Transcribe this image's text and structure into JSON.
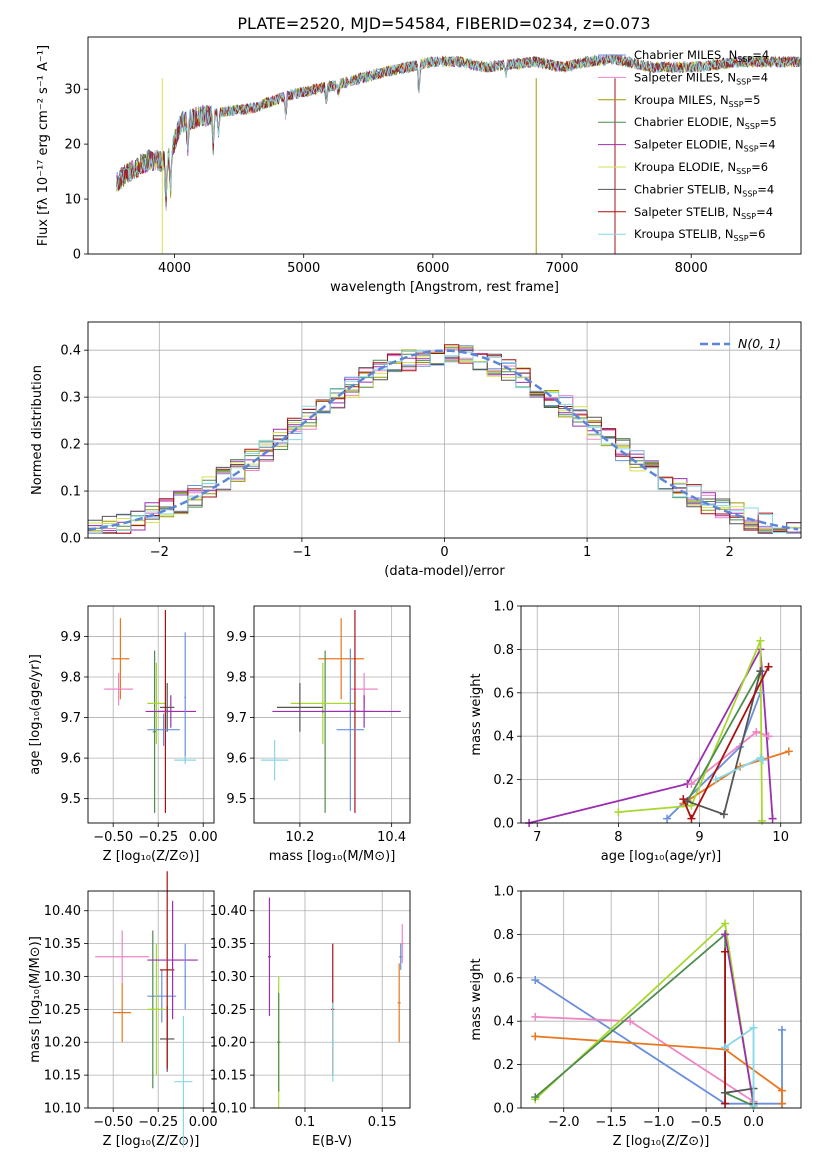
{
  "figure": {
    "title": "PLATE=2520, MJD=54584, FIBERID=0234, z=0.073"
  },
  "colors": {
    "Chabrier MILES": "#6a8fdc",
    "Salpeter MILES": "#ee86c4",
    "Kroupa MILES": "#9a9a00",
    "Chabrier ELODIE": "#4e8d4e",
    "Salpeter ELODIE": "#9a2fb0",
    "Kroupa ELODIE": "#d6e050",
    "Chabrier STELIB": "#555555",
    "Salpeter STELIB": "#aa1010",
    "Kroupa STELIB": "#88d8e8",
    "orange": "#e87820",
    "lime": "#a8d830",
    "normal": "#5b86d8"
  },
  "chart_data": [
    {
      "type": "line",
      "name": "spectrum",
      "title": "PLATE=2520, MJD=54584, FIBERID=0234, z=0.073",
      "xlabel": "wavelength [Angstrom, rest frame]",
      "ylabel": "Flux [fλ 10⁻¹⁷ erg cm⁻² s⁻¹ A⁻¹]",
      "xlim": [
        3330,
        8850
      ],
      "ylim": [
        0,
        39.5
      ],
      "xticks": [
        4000,
        5000,
        6000,
        7000,
        8000
      ],
      "yticks": [
        0,
        10,
        20,
        30
      ],
      "legend_position": "top-right",
      "legend": [
        "Chabrier MILES, N_SSP=4",
        "Salpeter MILES, N_SSP=4",
        "Kroupa MILES, N_SSP=5",
        "Chabrier ELODIE, N_SSP=5",
        "Salpeter ELODIE, N_SSP=4",
        "Kroupa ELODIE, N_SSP=6",
        "Chabrier STELIB, N_SSP=4",
        "Salpeter STELIB, N_SSP=4",
        "Kroupa STELIB, N_SSP=6"
      ],
      "continuum": [
        [
          3550,
          13
        ],
        [
          3650,
          15
        ],
        [
          3800,
          17
        ],
        [
          3950,
          17
        ],
        [
          4050,
          24
        ],
        [
          4200,
          25
        ],
        [
          4400,
          26
        ],
        [
          4600,
          26.5
        ],
        [
          4900,
          29
        ],
        [
          5100,
          30
        ],
        [
          5300,
          31
        ],
        [
          5600,
          33
        ],
        [
          5800,
          34
        ],
        [
          6000,
          35
        ],
        [
          6200,
          35
        ],
        [
          6400,
          34
        ],
        [
          6800,
          35
        ],
        [
          7000,
          34
        ],
        [
          7200,
          35
        ],
        [
          7400,
          35.5
        ],
        [
          7700,
          34
        ],
        [
          8000,
          34
        ],
        [
          8400,
          35
        ],
        [
          8850,
          35
        ]
      ]
    },
    {
      "type": "line",
      "name": "residuals",
      "xlabel": "(data-model)/error",
      "ylabel": "Normed distribution",
      "xlim": [
        -2.5,
        2.5
      ],
      "ylim": [
        0,
        0.46
      ],
      "xticks": [
        -2,
        -1,
        0,
        1,
        2
      ],
      "yticks": [
        0.0,
        0.1,
        0.2,
        0.3,
        0.4
      ],
      "grid": true,
      "legend_position": "top-right",
      "legend": [
        "N(0, 1)"
      ]
    },
    {
      "type": "scatter",
      "name": "age-vs-Z",
      "xlabel": "Z [log₁₀(Z/Z⊙)]",
      "ylabel": "age  [log₁₀(age/yr)]",
      "xlim": [
        -0.64,
        0.06
      ],
      "ylim": [
        9.44,
        9.975
      ],
      "xticks": [
        -0.5,
        -0.25,
        0.0
      ],
      "xticklabels": [
        "−0.50",
        "−0.25",
        "0.00"
      ],
      "yticks": [
        9.5,
        9.6,
        9.7,
        9.8,
        9.9
      ],
      "grid": true
    },
    {
      "type": "scatter",
      "name": "age-vs-mass",
      "xlabel": "mass [log₁₀(M/M⊙)]",
      "ylabel": "",
      "xlim": [
        10.1,
        10.44
      ],
      "ylim": [
        9.44,
        9.975
      ],
      "xticks": [
        10.2,
        10.4
      ],
      "yticks": [
        9.5,
        9.6,
        9.7,
        9.8,
        9.9
      ],
      "grid": true
    },
    {
      "type": "line",
      "name": "weight-vs-age",
      "xlabel": "age  [log₁₀(age/yr)]",
      "ylabel": "mass weight",
      "xlim": [
        6.8,
        10.25
      ],
      "ylim": [
        0,
        1.0
      ],
      "xticks": [
        7,
        8,
        9,
        10
      ],
      "yticks": [
        0.0,
        0.2,
        0.4,
        0.6,
        0.8,
        1.0
      ],
      "grid": true,
      "series": [
        {
          "color": "Salpeter ELODIE",
          "x": [
            6.9,
            8.85,
            9.75,
            9.9
          ],
          "y": [
            0.0,
            0.18,
            0.8,
            0.02
          ]
        },
        {
          "color": "Chabrier MILES",
          "x": [
            8.6,
            9.5,
            9.75
          ],
          "y": [
            0.02,
            0.35,
            0.6
          ]
        },
        {
          "color": "Salpeter MILES",
          "x": [
            8.9,
            9.7,
            9.85
          ],
          "y": [
            0.18,
            0.42,
            0.4
          ]
        },
        {
          "color": "orange",
          "x": [
            8.8,
            9.5,
            10.1
          ],
          "y": [
            0.09,
            0.26,
            0.33
          ]
        },
        {
          "color": "lime",
          "x": [
            8.0,
            8.9,
            9.75,
            9.77
          ],
          "y": [
            0.05,
            0.08,
            0.84,
            0.01
          ]
        },
        {
          "color": "Chabrier ELODIE",
          "x": [
            8.85,
            9.75
          ],
          "y": [
            0.1,
            0.7
          ]
        },
        {
          "color": "Chabrier STELIB",
          "x": [
            8.85,
            9.3,
            9.75
          ],
          "y": [
            0.1,
            0.04,
            0.7
          ]
        },
        {
          "color": "Salpeter STELIB",
          "x": [
            8.8,
            8.9,
            9.85
          ],
          "y": [
            0.11,
            0.02,
            0.72
          ]
        },
        {
          "color": "Kroupa STELIB",
          "x": [
            9.2,
            9.75,
            9.78
          ],
          "y": [
            0.2,
            0.3,
            0.29
          ]
        }
      ]
    },
    {
      "type": "scatter",
      "name": "mass-vs-Z",
      "xlabel": "Z [log₁₀(Z/Z⊙)]",
      "ylabel": "mass [log₁₀(M/M⊙)]",
      "xlim": [
        -0.64,
        0.06
      ],
      "ylim": [
        10.1,
        10.43
      ],
      "xticks": [
        -0.5,
        -0.25,
        0.0
      ],
      "xticklabels": [
        "−0.50",
        "−0.25",
        "0.00"
      ],
      "yticks": [
        10.1,
        10.15,
        10.2,
        10.25,
        10.3,
        10.35,
        10.4
      ],
      "grid": true
    },
    {
      "type": "scatter",
      "name": "mass-vs-EBV",
      "xlabel": "E(B-V)",
      "ylabel": "",
      "xlim": [
        0.067,
        0.168
      ],
      "ylim": [
        10.1,
        10.43
      ],
      "xticks": [
        0.1,
        0.15
      ],
      "yticks": [
        10.1,
        10.15,
        10.2,
        10.25,
        10.3,
        10.35,
        10.4
      ],
      "grid": true
    },
    {
      "type": "line",
      "name": "weight-vs-Z",
      "xlabel": "Z [log₁₀(Z/Z⊙)]",
      "ylabel": "mass weight",
      "xlim": [
        -2.45,
        0.5
      ],
      "ylim": [
        0,
        1.0
      ],
      "xticks": [
        -2.0,
        -1.5,
        -1.0,
        -0.5,
        0.0
      ],
      "xticklabels": [
        "−2.0",
        "−1.5",
        "−1.0",
        "−0.5",
        "0.0"
      ],
      "yticks": [
        0.0,
        0.2,
        0.4,
        0.6,
        0.8,
        1.0
      ],
      "grid": true,
      "series": [
        {
          "color": "Chabrier MILES",
          "x": [
            -2.3,
            -0.3,
            0.3,
            0.3
          ],
          "y": [
            0.59,
            0.02,
            0.02,
            0.36
          ]
        },
        {
          "color": "Salpeter MILES",
          "x": [
            -2.3,
            -1.3,
            0.0
          ],
          "y": [
            0.42,
            0.4,
            0.03
          ]
        },
        {
          "color": "orange",
          "x": [
            -2.3,
            -0.3,
            0.3,
            0.3
          ],
          "y": [
            0.33,
            0.27,
            0.08,
            0.02
          ]
        },
        {
          "color": "lime",
          "x": [
            -2.3,
            -0.3,
            0.0
          ],
          "y": [
            0.04,
            0.85,
            0.01
          ]
        },
        {
          "color": "Chabrier ELODIE",
          "x": [
            -2.3,
            -0.3,
            -0.3,
            0.0
          ],
          "y": [
            0.05,
            0.8,
            0.07,
            0.01
          ]
        },
        {
          "color": "Salpeter ELODIE",
          "x": [
            -0.3,
            0.0
          ],
          "y": [
            0.8,
            0.02
          ]
        },
        {
          "color": "Salpeter STELIB",
          "x": [
            -0.3,
            -0.3
          ],
          "y": [
            0.72,
            0.02
          ]
        },
        {
          "color": "Chabrier STELIB",
          "x": [
            -0.3,
            0.0,
            0.0
          ],
          "y": [
            0.07,
            0.09,
            0.02
          ]
        },
        {
          "color": "Kroupa STELIB",
          "x": [
            -0.3,
            0.0,
            0.0
          ],
          "y": [
            0.28,
            0.37,
            0.01
          ]
        }
      ]
    }
  ]
}
